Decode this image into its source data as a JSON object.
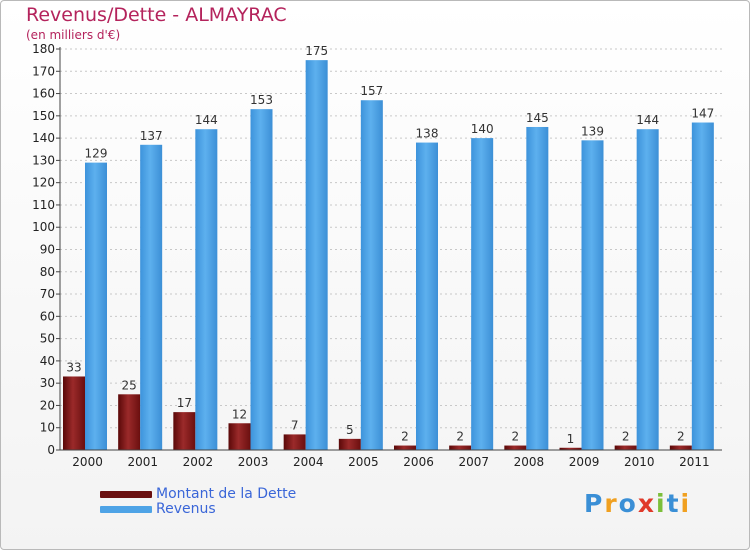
{
  "header": {
    "title": "Revenus/Dette - ALMAYRAC",
    "subtitle": "(en milliers d'€)"
  },
  "chart_data": {
    "type": "bar",
    "title": "Revenus/Dette - ALMAYRAC",
    "ylabel": "(en milliers d'€)",
    "xlabel": "",
    "categories": [
      "2000",
      "2001",
      "2002",
      "2003",
      "2004",
      "2005",
      "2006",
      "2007",
      "2008",
      "2009",
      "2010",
      "2011"
    ],
    "series": [
      {
        "name": "Montant de la Dette",
        "color": "#7a1515",
        "values": [
          33,
          25,
          17,
          12,
          7,
          5,
          2,
          2,
          2,
          1,
          2,
          2
        ]
      },
      {
        "name": "Revenus",
        "color": "#4ea3e6",
        "values": [
          129,
          137,
          144,
          153,
          175,
          157,
          138,
          140,
          145,
          139,
          144,
          147
        ]
      }
    ],
    "ylim": [
      0,
      180
    ],
    "yticks": [
      0,
      10,
      20,
      30,
      40,
      50,
      60,
      70,
      80,
      90,
      100,
      110,
      120,
      130,
      140,
      150,
      160,
      170,
      180
    ],
    "grid": true,
    "legend": "bottom-left"
  },
  "legend": {
    "items": [
      {
        "label": "Montant de la Dette",
        "color": "#7a1515"
      },
      {
        "label": "Revenus",
        "color": "#4ea3e6"
      }
    ]
  },
  "logo": {
    "text": "Proxiti",
    "colors": [
      "#3a8fd6",
      "#f0a020",
      "#3a8fd6",
      "#e03a2a",
      "#7cbf3a",
      "#3a8fd6",
      "#f0a020"
    ]
  }
}
